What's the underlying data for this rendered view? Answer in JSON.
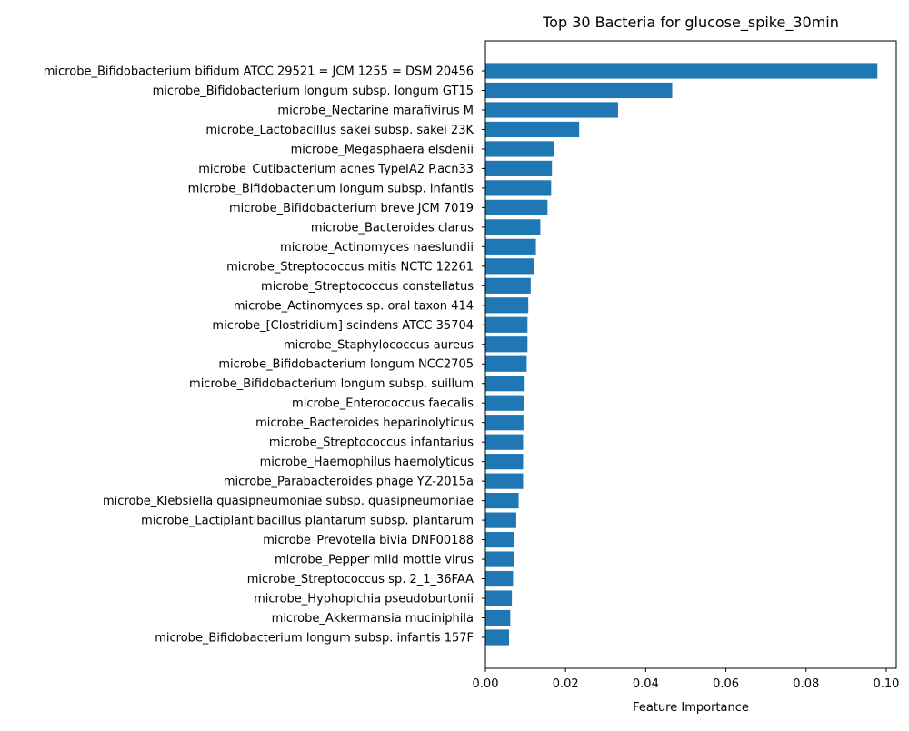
{
  "chart_data": {
    "type": "bar",
    "orientation": "horizontal",
    "title": "Top 30 Bacteria for glucose_spike_30min",
    "xlabel": "Feature Importance",
    "ylabel": "",
    "xlim": [
      0.0,
      0.1025
    ],
    "xticks": [
      "0.00",
      "0.02",
      "0.04",
      "0.06",
      "0.08",
      "0.10"
    ],
    "xtick_values": [
      0.0,
      0.02,
      0.04,
      0.06,
      0.08,
      0.1
    ],
    "grid": false,
    "bar_color": "#1f77b4",
    "categories": [
      "microbe_Bifidobacterium bifidum ATCC 29521 = JCM 1255 = DSM 20456",
      "microbe_Bifidobacterium longum subsp. longum GT15",
      "microbe_Nectarine marafivirus M",
      "microbe_Lactobacillus sakei subsp. sakei 23K",
      "microbe_Megasphaera elsdenii",
      "microbe_Cutibacterium acnes TypeIA2 P.acn33",
      "microbe_Bifidobacterium longum subsp. infantis",
      "microbe_Bifidobacterium breve JCM 7019",
      "microbe_Bacteroides clarus",
      "microbe_Actinomyces naeslundii",
      "microbe_Streptococcus mitis NCTC 12261",
      "microbe_Streptococcus constellatus",
      "microbe_Actinomyces sp. oral taxon 414",
      "microbe_[Clostridium] scindens ATCC 35704",
      "microbe_Staphylococcus aureus",
      "microbe_Bifidobacterium longum NCC2705",
      "microbe_Bifidobacterium longum subsp. suillum",
      "microbe_Enterococcus faecalis",
      "microbe_Bacteroides heparinolyticus",
      "microbe_Streptococcus infantarius",
      "microbe_Haemophilus haemolyticus",
      "microbe_Parabacteroides phage YZ-2015a",
      "microbe_Klebsiella quasipneumoniae subsp. quasipneumoniae",
      "microbe_Lactiplantibacillus plantarum subsp. plantarum",
      "microbe_Prevotella bivia DNF00188",
      "microbe_Pepper mild mottle virus",
      "microbe_Streptococcus sp. 2_1_36FAA",
      "microbe_Hyphopichia pseudoburtonii",
      "microbe_Akkermansia muciniphila",
      "microbe_Bifidobacterium longum subsp. infantis 157F"
    ],
    "values": [
      0.0978,
      0.0466,
      0.0331,
      0.0234,
      0.0171,
      0.0166,
      0.0164,
      0.0155,
      0.0137,
      0.0126,
      0.0122,
      0.0113,
      0.0107,
      0.0105,
      0.0105,
      0.0103,
      0.0098,
      0.0096,
      0.0095,
      0.0094,
      0.0094,
      0.0094,
      0.0083,
      0.0077,
      0.0072,
      0.0071,
      0.0069,
      0.0066,
      0.0062,
      0.0059
    ]
  }
}
